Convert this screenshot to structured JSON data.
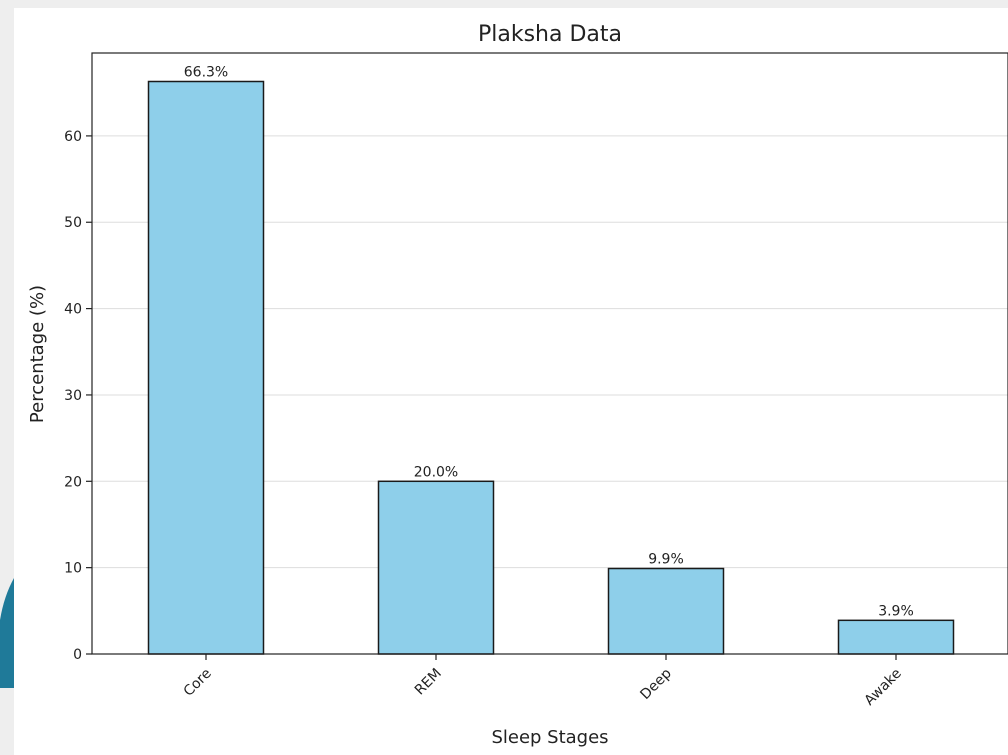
{
  "chart_data": {
    "type": "bar",
    "title": "Plaksha Data",
    "xlabel": "Sleep Stages",
    "ylabel": "Percentage (%)",
    "categories": [
      "Core",
      "REM",
      "Deep",
      "Awake"
    ],
    "values": [
      66.3,
      20.0,
      9.9,
      3.9
    ],
    "data_labels": [
      "66.3%",
      "20.0%",
      "9.9%",
      "3.9%"
    ],
    "yticks": [
      0,
      10,
      20,
      30,
      40,
      50,
      60
    ],
    "ylim": [
      0,
      69.6
    ],
    "grid": "horizontal",
    "bar_color": "#8ecfea",
    "bar_edge_color": "#1a1a1a",
    "accent_color": "#1f7a99"
  }
}
